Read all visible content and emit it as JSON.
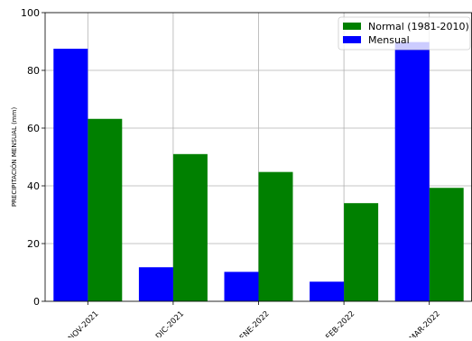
{
  "chart_data": {
    "type": "bar",
    "categories": [
      "NOV-2021",
      "DIC-2021",
      "ENE-2022",
      "FEB-2022",
      "MAR-2022"
    ],
    "series": [
      {
        "name": "Mensual",
        "values": [
          87.5,
          11.8,
          10.2,
          6.8,
          89.8
        ],
        "color": "#0000ff"
      },
      {
        "name": "Normal (1981-2010)",
        "values": [
          63.2,
          51.0,
          44.8,
          34.0,
          39.3
        ],
        "color": "#008000"
      }
    ],
    "title": "",
    "xlabel": "",
    "ylabel": "PRECIPITACIÓN MENSUAL (mm)",
    "ylim": [
      0,
      100
    ],
    "yticks": [
      0,
      20,
      40,
      60,
      80,
      100
    ],
    "grid": true,
    "legend_position": "top-right",
    "legend_order": [
      "Normal (1981-2010)",
      "Mensual"
    ]
  }
}
